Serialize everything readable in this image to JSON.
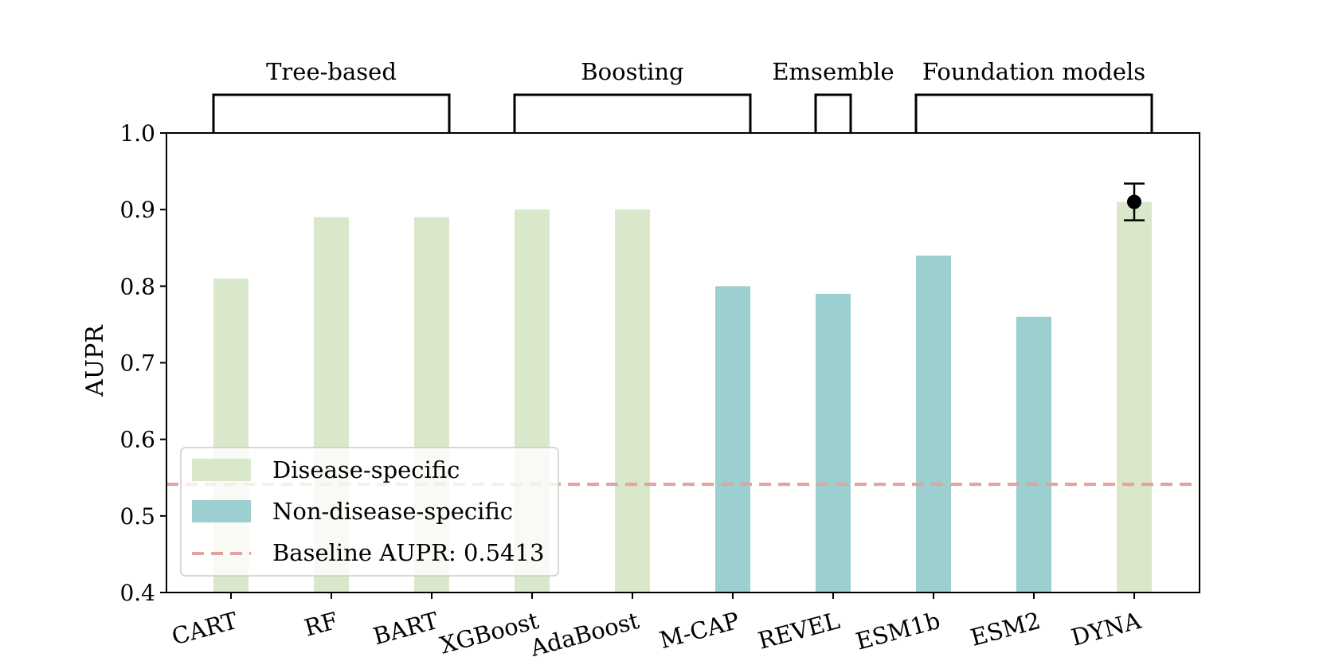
{
  "chart_data": {
    "type": "bar",
    "ylabel": "AUPR",
    "xlabel": "",
    "title": "",
    "ylim": [
      0.4,
      1.0
    ],
    "yticks": [
      "0.4",
      "0.5",
      "0.6",
      "0.7",
      "0.8",
      "0.9",
      "1.0"
    ],
    "categories": [
      "CART",
      "RF",
      "BART",
      "XGBoost",
      "AdaBoost",
      "M-CAP",
      "REVEL",
      "ESM1b",
      "ESM2",
      "DYNA"
    ],
    "values": [
      0.81,
      0.89,
      0.89,
      0.9,
      0.9,
      0.8,
      0.79,
      0.84,
      0.76,
      0.91
    ],
    "bar_type": [
      "disease",
      "disease",
      "disease",
      "disease",
      "disease",
      "non",
      "non",
      "non",
      "non",
      "disease"
    ],
    "error_bar": {
      "category": "DYNA",
      "value": 0.91,
      "lower": 0.886,
      "upper": 0.934
    },
    "baseline": {
      "value": 0.5413,
      "label": "Baseline AUPR: 0.5413"
    },
    "groups": [
      {
        "label": "Tree-based",
        "from": "CART",
        "to": "BART"
      },
      {
        "label": "Boosting",
        "from": "XGBoost",
        "to": "M-CAP"
      },
      {
        "label": "Emsemble",
        "from": "REVEL",
        "to": "REVEL"
      },
      {
        "label": "Foundation models",
        "from": "ESM1b",
        "to": "DYNA"
      }
    ],
    "legend": {
      "position": "lower-left",
      "entries": [
        {
          "label": "Disease-specific",
          "kind": "disease"
        },
        {
          "label": "Non-disease-specific",
          "kind": "non"
        },
        {
          "label": "Baseline AUPR: 0.5413",
          "kind": "baseline"
        }
      ]
    },
    "colors": {
      "disease": "#d9e7cb",
      "non": "#9ccfcf",
      "baseline": "#e0a3a0",
      "axis": "#000000"
    },
    "grid": false
  }
}
